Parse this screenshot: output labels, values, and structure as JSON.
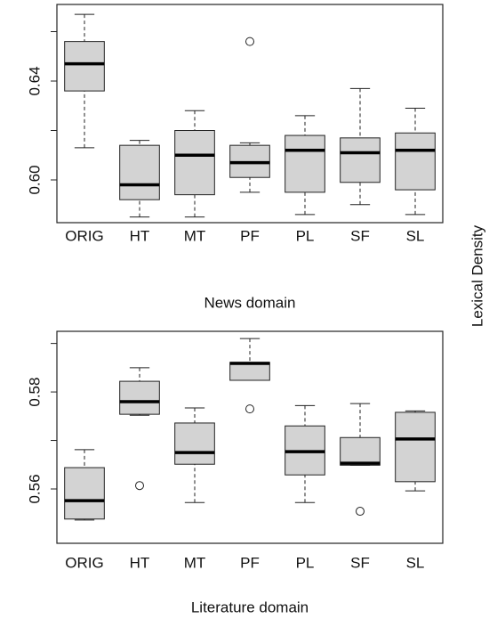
{
  "chart_data": [
    {
      "type": "box",
      "xlabel": "News domain",
      "ylabel": "Lexical Density",
      "categories": [
        "ORIG",
        "HT",
        "MT",
        "PF",
        "PL",
        "SF",
        "SL"
      ],
      "whislo": [
        0.613,
        0.585,
        0.585,
        0.595,
        0.586,
        0.59,
        0.586
      ],
      "q1": [
        0.636,
        0.592,
        0.594,
        0.601,
        0.595,
        0.599,
        0.596
      ],
      "med": [
        0.647,
        0.598,
        0.61,
        0.607,
        0.612,
        0.611,
        0.612
      ],
      "q3": [
        0.656,
        0.614,
        0.62,
        0.614,
        0.618,
        0.617,
        0.619
      ],
      "whishi": [
        0.667,
        0.616,
        0.628,
        0.615,
        0.626,
        0.637,
        0.629
      ],
      "outliers": [
        [],
        [],
        [],
        [
          0.656
        ],
        [],
        [],
        []
      ],
      "color": "#d3d3d3",
      "ylim": [
        0.5827,
        0.671
      ],
      "yticks": [
        {
          "value": 0.6,
          "label": "0.60"
        },
        0.64
      ],
      "yminor_ticks": [
        0.62,
        0.66
      ]
    },
    {
      "type": "box",
      "xlabel": "Literature domain",
      "categories": [
        "ORIG",
        "HT",
        "MT",
        "PF",
        "PL",
        "SF",
        "SL"
      ],
      "whislo": [
        0.5536,
        0.5752,
        0.5572,
        0.5824,
        0.5572,
        0.5649,
        0.5596
      ],
      "q1": [
        0.5538,
        0.5754,
        0.5651,
        0.5824,
        0.5629,
        0.5649,
        0.5615
      ],
      "med": [
        0.5576,
        0.578,
        0.5675,
        0.5859,
        0.5677,
        0.5653,
        0.5703
      ],
      "q3": [
        0.5644,
        0.5822,
        0.5736,
        0.5861,
        0.573,
        0.5706,
        0.5758
      ],
      "whishi": [
        0.5681,
        0.585,
        0.5767,
        0.591,
        0.5772,
        0.5776,
        0.5761
      ],
      "outliers": [
        [],
        [
          0.5607
        ],
        [],
        [
          0.5765
        ],
        [],
        [
          0.5554
        ],
        []
      ],
      "color": "#d3d3d3",
      "ylim": [
        0.5488,
        0.5925
      ],
      "yticks": [
        0.56,
        0.58
      ],
      "yminor_ticks": [
        0.57,
        0.59
      ]
    }
  ]
}
